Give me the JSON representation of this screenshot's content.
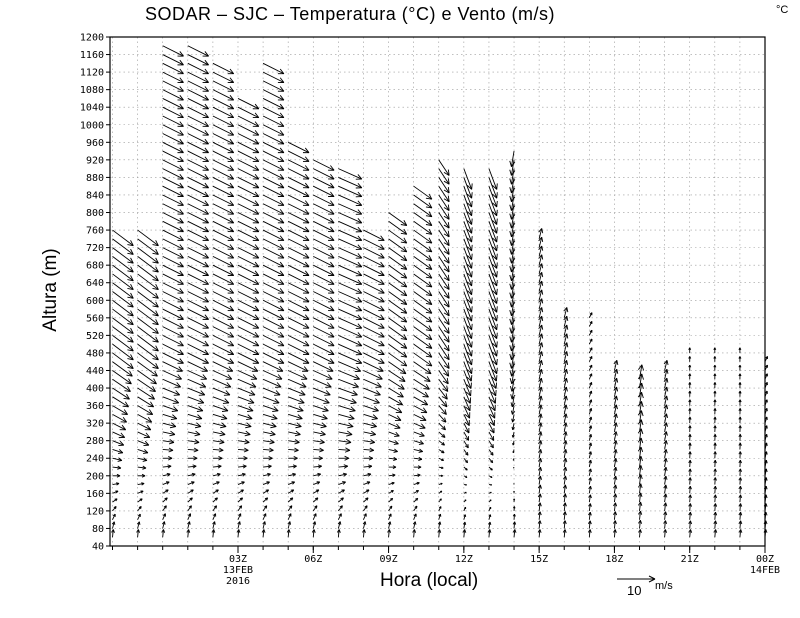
{
  "header": {
    "title": "SODAR – SJC – Temperatura (°C) e Vento (m/s)",
    "unit_corner": "°C"
  },
  "chart_data": {
    "type": "wind-barb-profile",
    "title": "SODAR – SJC – Temperatura (°C) e Vento (m/s)",
    "xlabel": "Hora (local)",
    "ylabel": "Altura (m)",
    "ylim": [
      40,
      1200
    ],
    "yticks": [
      40,
      80,
      120,
      160,
      200,
      240,
      280,
      320,
      360,
      400,
      440,
      480,
      520,
      560,
      600,
      640,
      680,
      720,
      760,
      800,
      840,
      880,
      920,
      960,
      1000,
      1040,
      1080,
      1120,
      1160,
      1200
    ],
    "xlim_hours": [
      -2.1,
      24
    ],
    "xticks": [
      {
        "hour": 3,
        "label": "03Z",
        "sub1": "13FEB",
        "sub2": "2016"
      },
      {
        "hour": 6,
        "label": "06Z",
        "sub1": "",
        "sub2": ""
      },
      {
        "hour": 9,
        "label": "09Z",
        "sub1": "",
        "sub2": ""
      },
      {
        "hour": 12,
        "label": "12Z",
        "sub1": "",
        "sub2": ""
      },
      {
        "hour": 15,
        "label": "15Z",
        "sub1": "",
        "sub2": ""
      },
      {
        "hour": 18,
        "label": "18Z",
        "sub1": "",
        "sub2": ""
      },
      {
        "hour": 21,
        "label": "21Z",
        "sub1": "",
        "sub2": ""
      },
      {
        "hour": 24,
        "label": "00Z",
        "sub1": "14FEB",
        "sub2": ""
      }
    ],
    "grid": true,
    "reference_vector": {
      "speed": 10,
      "label": "10",
      "unit": "m/s"
    },
    "series": [
      {
        "name": "wind",
        "hours": [
          -2,
          -1,
          0,
          1,
          2,
          3,
          4,
          5,
          6,
          7,
          8,
          9,
          10,
          11,
          12,
          13,
          14,
          15,
          16,
          17,
          18,
          19,
          20,
          21,
          22,
          23,
          24
        ],
        "top_height_m": [
          760,
          760,
          1180,
          1180,
          1140,
          1060,
          1140,
          960,
          920,
          900,
          760,
          800,
          860,
          920,
          900,
          900,
          940,
          740,
          560,
          560,
          440,
          420,
          440,
          480,
          480,
          480,
          460
        ],
        "upper_u_ms": [
          8,
          8,
          8,
          8,
          8,
          8,
          8,
          8,
          8,
          9,
          8,
          7,
          7,
          4,
          3,
          3,
          -1,
          1,
          1,
          1,
          1,
          1,
          1,
          0,
          0,
          0,
          1
        ],
        "upper_v_ms": [
          -6,
          -6,
          -4,
          -4,
          -4,
          -4,
          -4,
          -4,
          -4,
          -4,
          -4,
          -5,
          -5,
          -6,
          -8,
          -8,
          -6,
          4,
          4,
          2,
          4,
          6,
          4,
          2,
          2,
          2,
          2
        ]
      }
    ]
  },
  "footer": {
    "xlabel": "Hora (local)",
    "reference_label": "10",
    "reference_unit": "m/s"
  }
}
